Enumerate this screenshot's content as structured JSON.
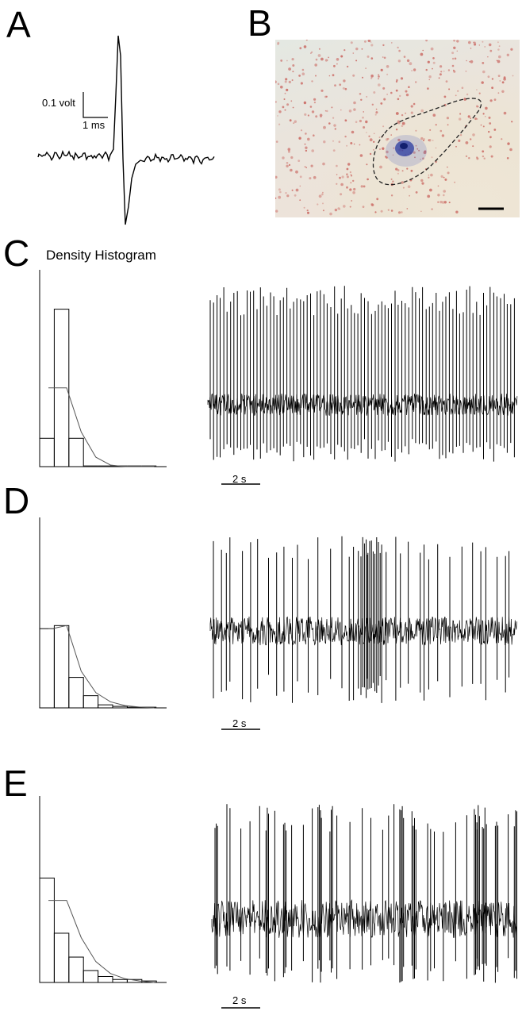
{
  "panels": {
    "a": "A",
    "b": "B",
    "c": "C",
    "d": "D",
    "e": "E"
  },
  "spike_scale": {
    "voltage_label": "0.1 volt",
    "time_label": "1 ms"
  },
  "histogram_title": "Density Histogram",
  "trace_scale_label": "2 s",
  "colors": {
    "ink": "#000000",
    "stain_red": "#c8605a",
    "stain_blue": "#2a3aa0",
    "tissue_bg": "#e9e5dd"
  },
  "chart_data": [
    {
      "panel": "C",
      "type": "bar",
      "title": "Density Histogram",
      "values": [
        0.18,
        1.0,
        0.18,
        0.0,
        0.0,
        0.0,
        0.0,
        0.0
      ],
      "fit_curve": [
        0.5,
        0.5,
        0.22,
        0.06,
        0.01,
        0.0,
        0.0,
        0.0
      ],
      "trace_pattern": "regular"
    },
    {
      "panel": "D",
      "type": "bar",
      "title": "",
      "values": [
        0.52,
        0.54,
        0.2,
        0.08,
        0.02,
        0.01,
        0.0,
        0.0
      ],
      "fit_curve": [
        0.52,
        0.54,
        0.24,
        0.1,
        0.04,
        0.015,
        0.005,
        0.0
      ],
      "trace_pattern": "irregular"
    },
    {
      "panel": "E",
      "type": "bar",
      "title": "",
      "values": [
        0.7,
        0.33,
        0.17,
        0.08,
        0.04,
        0.02,
        0.02,
        0.01
      ],
      "fit_curve": [
        0.55,
        0.55,
        0.3,
        0.14,
        0.06,
        0.025,
        0.01,
        0.0
      ],
      "trace_pattern": "bursting"
    }
  ]
}
